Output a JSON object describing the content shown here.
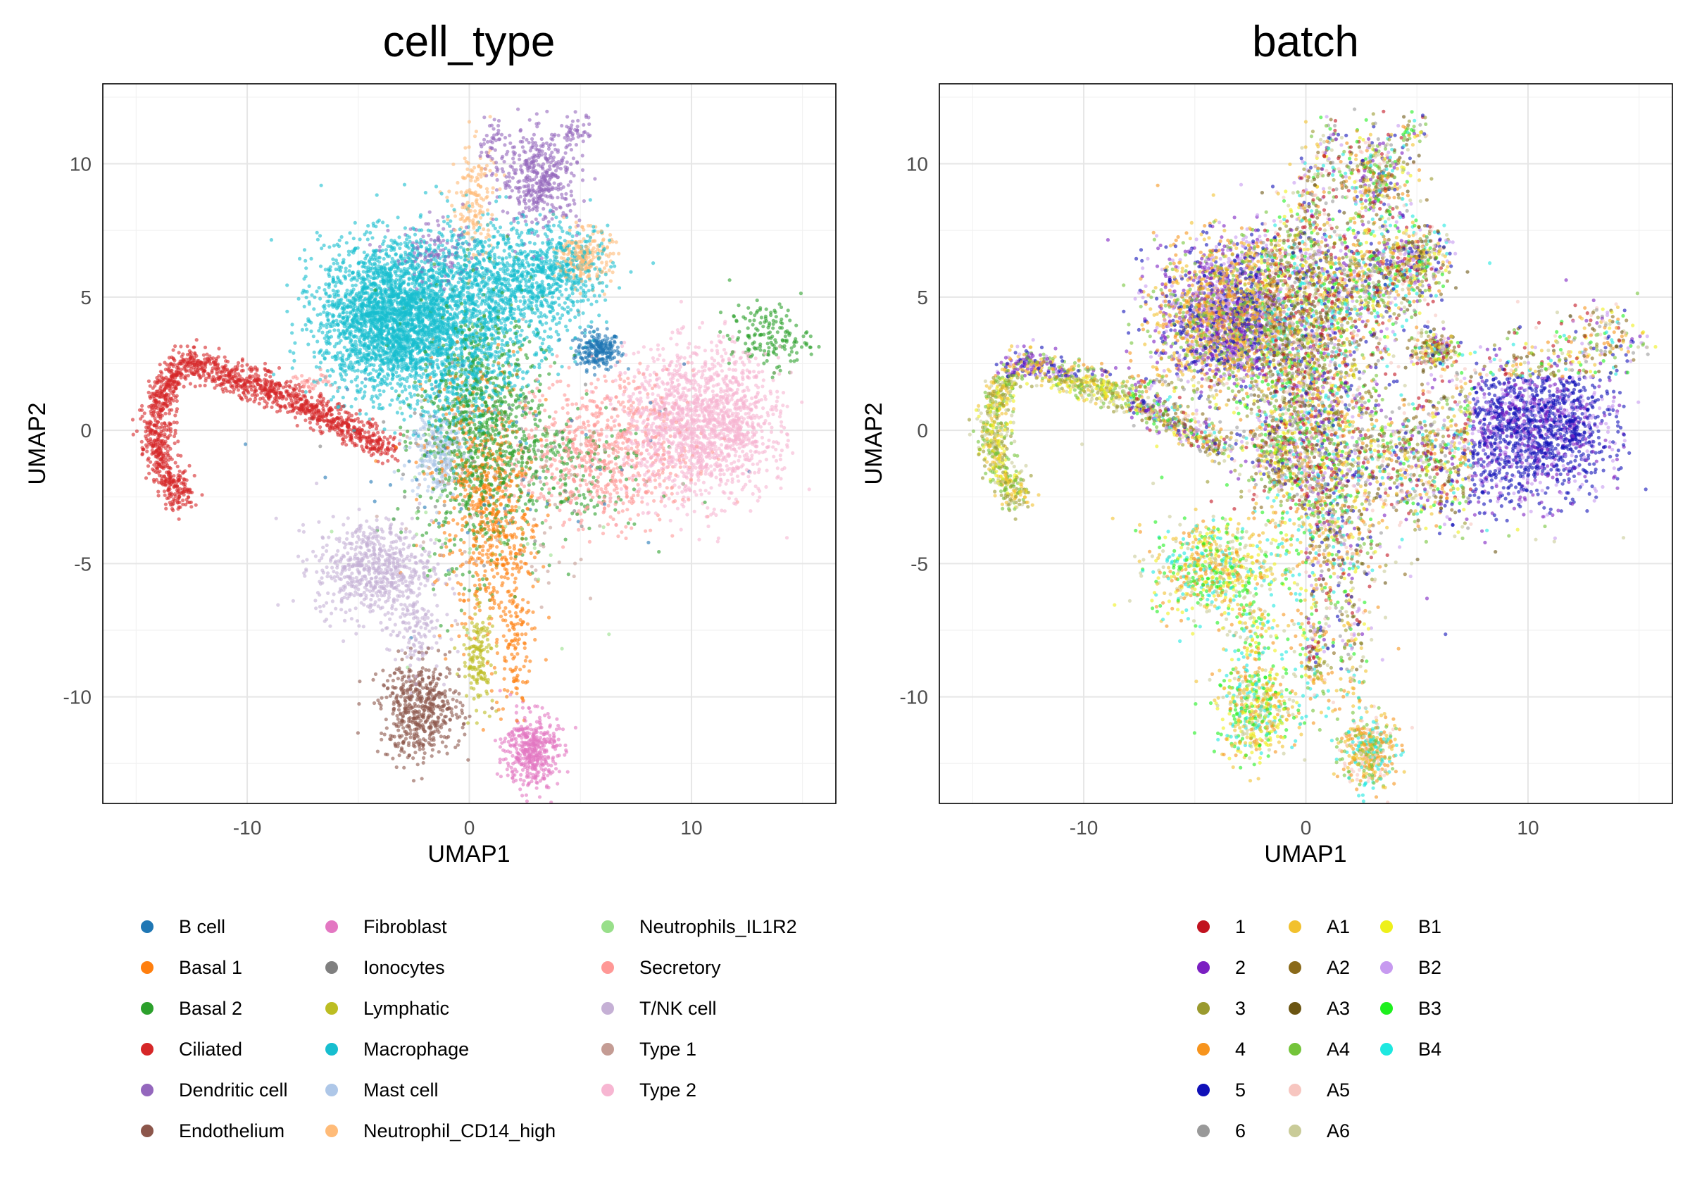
{
  "chart_data": [
    {
      "type": "scatter",
      "title": "cell_type",
      "xlabel": "UMAP1",
      "ylabel": "UMAP2",
      "xlim": [
        -16.5,
        16.5
      ],
      "ylim": [
        -14,
        13
      ],
      "x_ticks": [
        -10,
        0,
        10
      ],
      "x_tick_labels": [
        "-10",
        "0",
        "10"
      ],
      "y_ticks": [
        -10,
        -5,
        0,
        5,
        10
      ],
      "y_tick_labels": [
        "-10",
        "-5",
        "0",
        "5",
        "10"
      ],
      "grid": true,
      "legend_position": "bottom",
      "series": [
        {
          "name": "B cell",
          "color": "#1F77B4",
          "clusters": [
            [
              5.8,
              3.0,
              0.5,
              0.35,
              220
            ],
            [
              1.5,
              -1.0,
              4.0,
              2.0,
              60
            ]
          ]
        },
        {
          "name": "Basal 1",
          "color": "#FF7F0E",
          "clusters": [
            [
              1.2,
              -4.0,
              1.0,
              1.8,
              380
            ],
            [
              2.0,
              -8.0,
              0.4,
              1.5,
              120
            ],
            [
              0.3,
              -1.5,
              1.2,
              2.2,
              300
            ]
          ]
        },
        {
          "name": "Basal 2",
          "color": "#2CA02C",
          "clusters": [
            [
              0.5,
              0.0,
              1.4,
              2.5,
              900
            ],
            [
              13.5,
              3.5,
              0.9,
              0.6,
              160
            ],
            [
              4.0,
              -1.5,
              2.0,
              1.2,
              200
            ]
          ]
        },
        {
          "name": "Ciliated",
          "color": "#D62728",
          "arc": true
        },
        {
          "name": "Dendritic cell",
          "color": "#9467BD",
          "clusters": [
            [
              3.2,
              9.5,
              0.9,
              0.9,
              420
            ],
            [
              1.0,
              10.8,
              0.3,
              0.5,
              40
            ],
            [
              4.8,
              11.2,
              0.35,
              0.3,
              40
            ],
            [
              -1.5,
              6.5,
              1.0,
              0.6,
              120
            ]
          ]
        },
        {
          "name": "Endothelium",
          "color": "#8C564B",
          "clusters": [
            [
              -2.2,
              -10.5,
              0.9,
              0.9,
              520
            ]
          ]
        },
        {
          "name": "Fibroblast",
          "color": "#E377C2",
          "clusters": [
            [
              2.8,
              -12.0,
              0.6,
              0.7,
              420
            ]
          ]
        },
        {
          "name": "Ionocytes",
          "color": "#7F7F7F",
          "clusters": [
            [
              0.5,
              -1.0,
              3.0,
              2.0,
              50
            ]
          ]
        },
        {
          "name": "Lymphatic",
          "color": "#BCBD22",
          "clusters": [
            [
              0.4,
              -8.5,
              0.35,
              0.9,
              150
            ]
          ]
        },
        {
          "name": "Macrophage",
          "color": "#17BECF",
          "clusters": [
            [
              -3.5,
              4.2,
              1.6,
              1.4,
              2600
            ],
            [
              1.0,
              5.2,
              2.0,
              1.3,
              1200
            ],
            [
              4.0,
              6.0,
              1.2,
              0.8,
              350
            ],
            [
              -0.3,
              2.0,
              1.2,
              1.2,
              400
            ]
          ]
        },
        {
          "name": "Mast cell",
          "color": "#AEC7E8",
          "clusters": [
            [
              -1.5,
              -0.8,
              0.6,
              0.8,
              240
            ]
          ]
        },
        {
          "name": "Neutrophil_CD14_high",
          "color": "#FFBB78",
          "clusters": [
            [
              5.2,
              6.5,
              0.6,
              0.5,
              220
            ],
            [
              0.2,
              8.5,
              0.5,
              1.2,
              160
            ]
          ]
        },
        {
          "name": "Neutrophils_IL1R2",
          "color": "#98DF8A",
          "clusters": [
            [
              0.5,
              -2.0,
              2.5,
              2.5,
              60
            ]
          ]
        },
        {
          "name": "Secretory",
          "color": "#FF9896",
          "clusters": [
            [
              6.0,
              -0.8,
              2.0,
              1.4,
              700
            ],
            [
              -7.0,
              1.8,
              0.5,
              0.2,
              30
            ]
          ]
        },
        {
          "name": "T/NK cell",
          "color": "#C5B0D5",
          "clusters": [
            [
              -4.3,
              -5.2,
              1.3,
              0.9,
              650
            ],
            [
              -2.5,
              -7.5,
              0.6,
              0.8,
              120
            ]
          ]
        },
        {
          "name": "Type 1",
          "color": "#C49C94",
          "clusters": [
            [
              1.5,
              -3.0,
              2.5,
              2.0,
              60
            ]
          ]
        },
        {
          "name": "Type 2",
          "color": "#F7B6D2",
          "clusters": [
            [
              10.2,
              0.2,
              1.6,
              1.4,
              1400
            ],
            [
              12.5,
              0.5,
              0.8,
              1.2,
              200
            ]
          ]
        }
      ]
    },
    {
      "type": "scatter",
      "title": "batch",
      "xlabel": "UMAP1",
      "ylabel": "UMAP2",
      "xlim": [
        -16.5,
        16.5
      ],
      "ylim": [
        -14,
        13
      ],
      "x_ticks": [
        -10,
        0,
        10
      ],
      "x_tick_labels": [
        "-10",
        "0",
        "10"
      ],
      "y_ticks": [
        -10,
        -5,
        0,
        5,
        10
      ],
      "y_tick_labels": [
        "-10",
        "-5",
        "0",
        "5",
        "10"
      ],
      "grid": true,
      "legend_position": "bottom",
      "series": [
        {
          "name": "1",
          "color": "#C1121F"
        },
        {
          "name": "2",
          "color": "#7B1FC2"
        },
        {
          "name": "3",
          "color": "#9A9A2E"
        },
        {
          "name": "4",
          "color": "#F7941D"
        },
        {
          "name": "5",
          "color": "#1010B8"
        },
        {
          "name": "6",
          "color": "#999999"
        },
        {
          "name": "A1",
          "color": "#F2C12E"
        },
        {
          "name": "A2",
          "color": "#8A6A1A"
        },
        {
          "name": "A3",
          "color": "#6B5512"
        },
        {
          "name": "A4",
          "color": "#74C43A"
        },
        {
          "name": "A5",
          "color": "#F7C6C0"
        },
        {
          "name": "A6",
          "color": "#C9CB98"
        },
        {
          "name": "B1",
          "color": "#EEF01A"
        },
        {
          "name": "B2",
          "color": "#C79AF0"
        },
        {
          "name": "B3",
          "color": "#1EF01E"
        },
        {
          "name": "B4",
          "color": "#1EE8E0"
        }
      ]
    }
  ],
  "legends": {
    "cell_type": [
      "B cell",
      "Basal 1",
      "Basal 2",
      "Ciliated",
      "Dendritic cell",
      "Endothelium",
      "Fibroblast",
      "Ionocytes",
      "Lymphatic",
      "Macrophage",
      "Mast cell",
      "Neutrophil_CD14_high",
      "Neutrophils_IL1R2",
      "Secretory",
      "T/NK cell",
      "Type 1",
      "Type 2"
    ],
    "batch": [
      "1",
      "2",
      "3",
      "4",
      "5",
      "6",
      "A1",
      "A2",
      "A3",
      "A4",
      "A5",
      "A6",
      "B1",
      "B2",
      "B3",
      "B4"
    ]
  }
}
